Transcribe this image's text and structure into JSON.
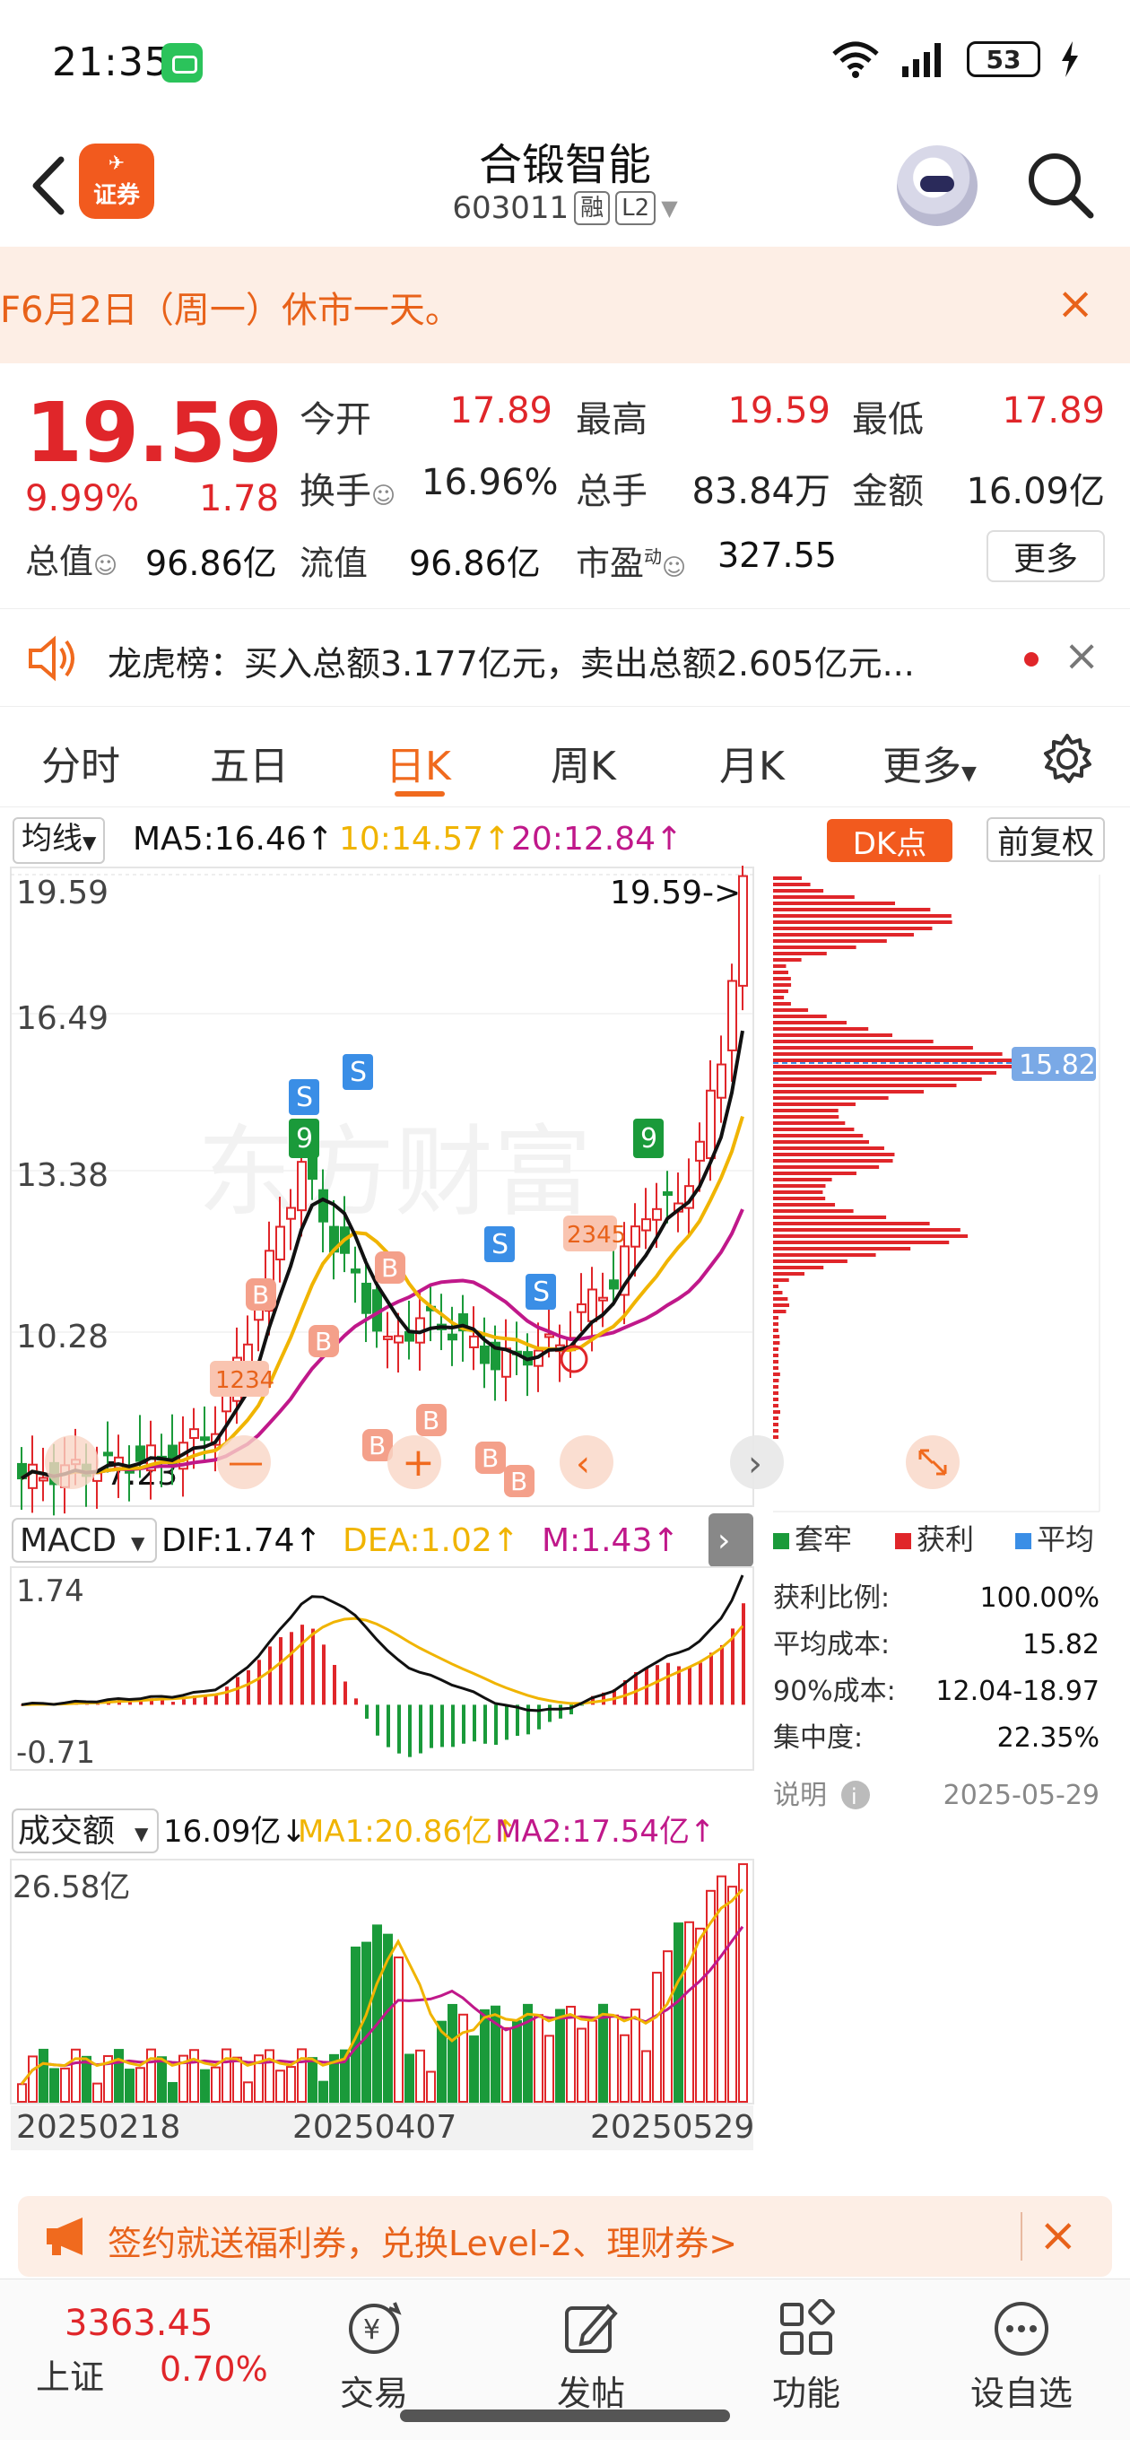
{
  "status_bar": {
    "time": "21:35",
    "battery": "53"
  },
  "header": {
    "app_logo_text": "证券",
    "stock_name": "合锻智能",
    "stock_code": "603011",
    "badge_margin": "融",
    "badge_level": "L2"
  },
  "notice": {
    "text": "F6月2日（周一）休市一天。",
    "close": "×"
  },
  "quote": {
    "price": "19.59",
    "change_pct": "9.99%",
    "change": "1.78",
    "open_label": "今开",
    "open": "17.89",
    "high_label": "最高",
    "high": "19.59",
    "low_label": "最低",
    "low": "17.89",
    "turnover_label": "换手",
    "turnover": "16.96%",
    "volume_label": "总手",
    "volume": "83.84万",
    "amount_label": "金额",
    "amount": "16.09亿",
    "total_cap_label": "总值",
    "total_cap": "96.86亿",
    "float_cap_label": "流值",
    "float_cap": "96.86亿",
    "pe_label": "市盈",
    "pe_sup": "动",
    "pe": "327.55",
    "more": "更多"
  },
  "dragon_tiger": {
    "text": "龙虎榜：买入总额3.177亿元，卖出总额2.605亿元..."
  },
  "tabs": [
    "分时",
    "五日",
    "日K",
    "周K",
    "月K",
    "更多"
  ],
  "active_tab": "日K",
  "kline_legend": {
    "indicator": "均线",
    "ma5": "MA5:16.46↑",
    "ma10": "10:14.57↑",
    "ma20": "20:12.84↑",
    "dk": "DK点",
    "adjust": "前复权"
  },
  "kline_axis": {
    "y_max": "19.59",
    "y2": "16.49",
    "y3": "13.38",
    "y4": "10.28",
    "low_marker": "7.23",
    "last_marker": "19.59->"
  },
  "macd_legend": {
    "name": "MACD",
    "dif": "DIF:1.74↑",
    "dea": "DEA:1.02↑",
    "m": "M:1.43↑",
    "y_max": "1.74",
    "y_min": "-0.71"
  },
  "volume_legend": {
    "name": "成交额",
    "value": "16.09亿↓",
    "ma1": "MA1:20.86亿↑",
    "ma2": "MA2:17.54亿↑",
    "y_max": "26.58亿"
  },
  "dates": [
    "20250218",
    "20250407",
    "20250529"
  ],
  "chip": {
    "price_tag": "15.82",
    "legend": [
      "套牢",
      "获利",
      "平均"
    ],
    "rows": [
      {
        "label": "获利比例:",
        "value": "100.00%"
      },
      {
        "label": "平均成本:",
        "value": "15.82"
      },
      {
        "label": "90%成本:",
        "value": "12.04-18.97"
      },
      {
        "label": "集中度:",
        "value": "22.35%"
      }
    ],
    "note": "说明",
    "date": "2025-05-29"
  },
  "promo": {
    "text": "签约就送福利券，兑换Level-2、理财券>"
  },
  "index": {
    "value": "3363.45",
    "name": "上证",
    "pct": "0.70%"
  },
  "nav": [
    "交易",
    "发帖",
    "功能",
    "设自选"
  ],
  "colors": {
    "up": "#e0262a",
    "down": "#1a9a3a",
    "accent": "#f06a1e",
    "ma5": "#111111",
    "ma10": "#f0b400",
    "ma20": "#c0188a"
  }
}
